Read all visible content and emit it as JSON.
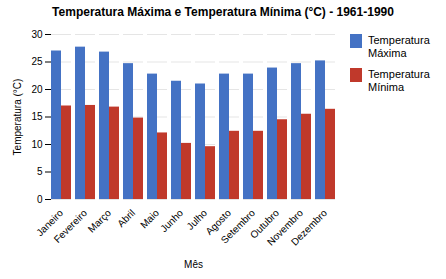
{
  "chart_data": {
    "type": "bar",
    "title": "Temperatura Máxima e Temperatura Mínima (°C) - 1961-1990",
    "xlabel": "Mês",
    "ylabel": "Temperatura (°C)",
    "categories": [
      "Janeiro",
      "Fevereiro",
      "Março",
      "Abril",
      "Maio",
      "Junho",
      "Julho",
      "Agosto",
      "Setembro",
      "Outubro",
      "Novembro",
      "Dezembro"
    ],
    "series": [
      {
        "name": "Temperatura\nMáxima",
        "color": "#4472C4",
        "values": [
          27.0,
          27.7,
          26.8,
          24.7,
          22.8,
          21.5,
          21.0,
          22.8,
          22.8,
          23.9,
          24.7,
          25.2
        ]
      },
      {
        "name": "Temperatura\nMínima",
        "color": "#C0392B",
        "values": [
          17.0,
          17.1,
          16.8,
          14.8,
          12.1,
          10.2,
          9.6,
          12.4,
          12.4,
          14.5,
          15.5,
          16.4
        ]
      }
    ],
    "ylim": [
      0,
      30
    ],
    "yticks": [
      0,
      5,
      10,
      15,
      20,
      25,
      30
    ],
    "grid": true,
    "legend": "right"
  }
}
